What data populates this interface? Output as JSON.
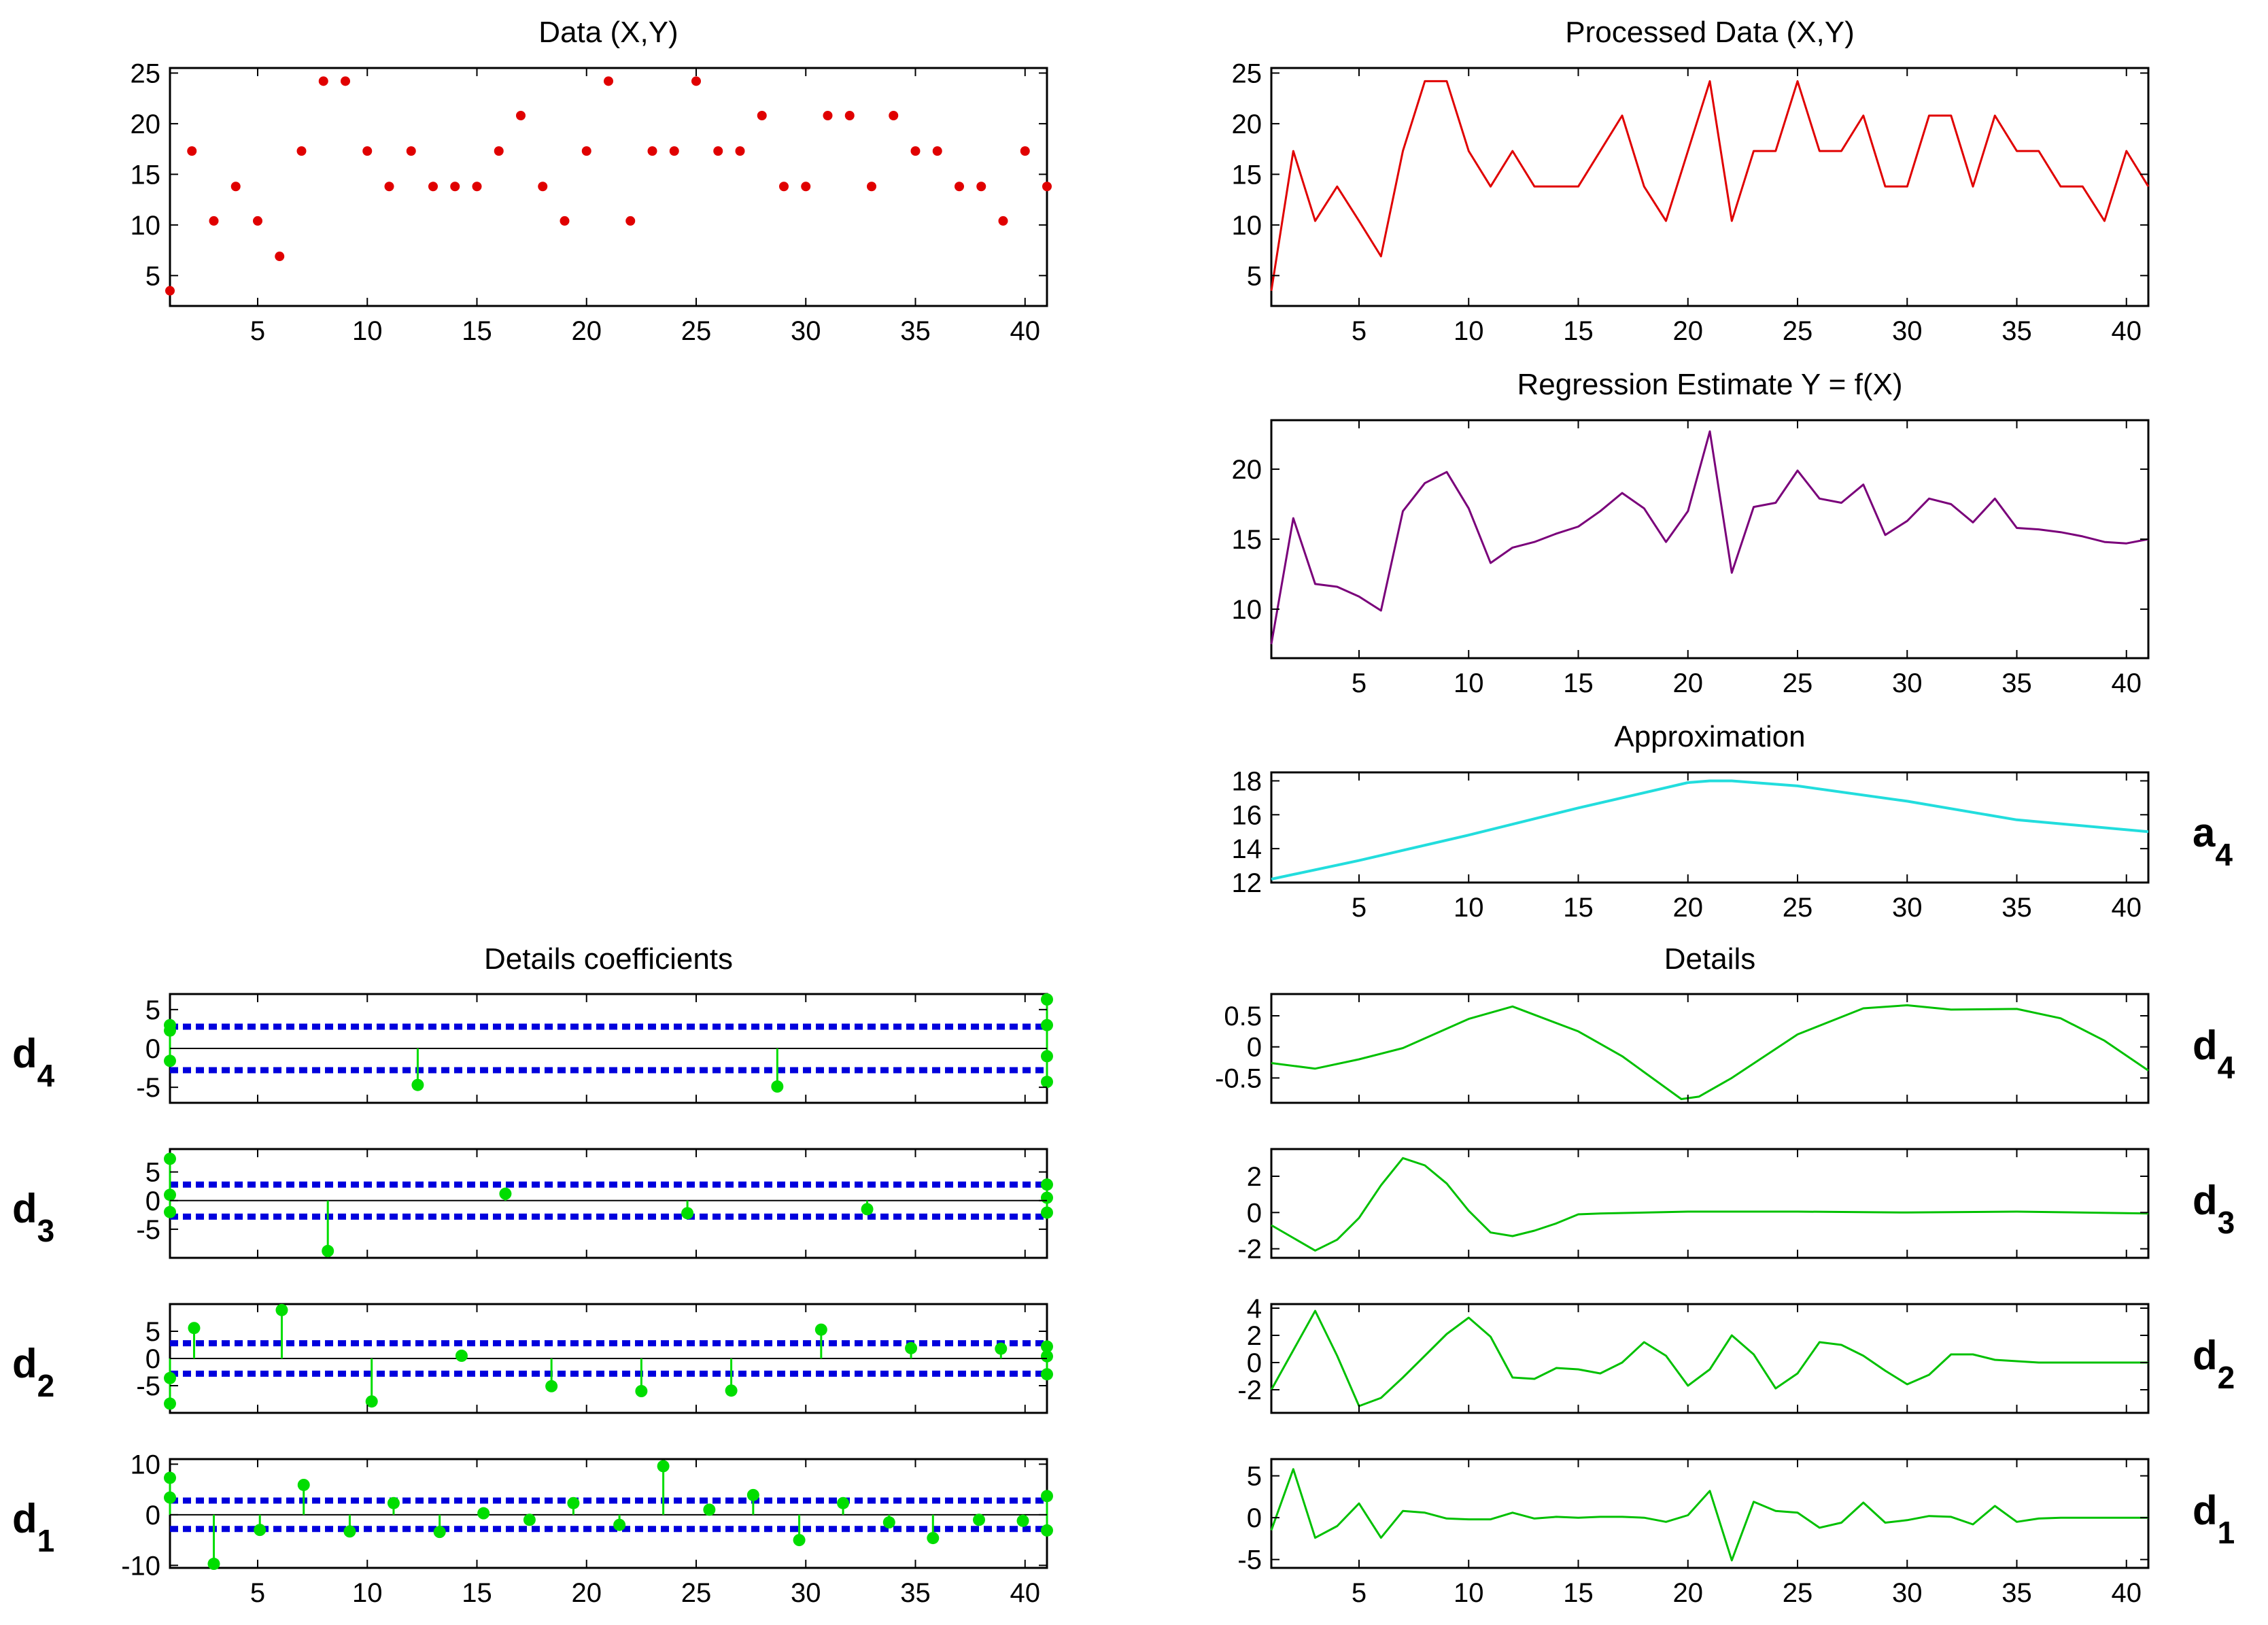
{
  "figure": {
    "colors": {
      "data": "#e00000",
      "processed": "#e00000",
      "regression": "#7a007a",
      "approximation": "#22dddd",
      "details": "#00c000",
      "coef": "#00dd00",
      "threshold": "#0000dd",
      "axis": "#000000"
    }
  },
  "chart_data": [
    {
      "id": "data",
      "type": "scatter",
      "title": "Data (X,Y)",
      "xlim": [
        1,
        41
      ],
      "ylim": [
        2,
        25.5
      ],
      "xticks": [
        5,
        10,
        15,
        20,
        25,
        30,
        35,
        40
      ],
      "yticks": [
        5,
        10,
        15,
        20,
        25
      ],
      "x": [
        1,
        2,
        3,
        4,
        5,
        6,
        7,
        8,
        9,
        10,
        11,
        12,
        13,
        14,
        15,
        16,
        17,
        18,
        19,
        20,
        21,
        22,
        23,
        24,
        25,
        26,
        27,
        28,
        29,
        30,
        31,
        32,
        33,
        34,
        35,
        36,
        37,
        38,
        39,
        40,
        41
      ],
      "y": [
        3.5,
        17.3,
        10.4,
        13.8,
        10.4,
        6.9,
        17.3,
        24.2,
        24.2,
        17.3,
        13.8,
        17.3,
        13.8,
        13.8,
        13.8,
        17.3,
        20.8,
        13.8,
        10.4,
        17.3,
        24.2,
        10.4,
        17.3,
        17.3,
        24.2,
        17.3,
        17.3,
        20.8,
        13.8,
        13.8,
        20.8,
        20.8,
        13.8,
        20.8,
        17.3,
        17.3,
        13.8,
        13.8,
        10.4,
        17.3,
        13.8
      ]
    },
    {
      "id": "processed",
      "type": "line",
      "title": "Processed Data (X,Y)",
      "xlim": [
        1,
        41
      ],
      "ylim": [
        2,
        25.5
      ],
      "xticks": [
        5,
        10,
        15,
        20,
        25,
        30,
        35,
        40
      ],
      "yticks": [
        5,
        10,
        15,
        20,
        25
      ],
      "x": [
        1,
        2,
        3,
        4,
        5,
        6,
        7,
        8,
        9,
        10,
        11,
        12,
        13,
        14,
        15,
        16,
        17,
        18,
        19,
        20,
        21,
        22,
        23,
        24,
        25,
        26,
        27,
        28,
        29,
        30,
        31,
        32,
        33,
        34,
        35,
        36,
        37,
        38,
        39,
        40,
        41
      ],
      "y": [
        3.5,
        17.3,
        10.4,
        13.8,
        10.4,
        6.9,
        17.3,
        24.2,
        24.2,
        17.3,
        13.8,
        17.3,
        13.8,
        13.8,
        13.8,
        17.3,
        20.8,
        13.8,
        10.4,
        17.3,
        24.2,
        10.4,
        17.3,
        17.3,
        24.2,
        17.3,
        17.3,
        20.8,
        13.8,
        13.8,
        20.8,
        20.8,
        13.8,
        20.8,
        17.3,
        17.3,
        13.8,
        13.8,
        10.4,
        17.3,
        13.8
      ]
    },
    {
      "id": "regression",
      "type": "line",
      "title": "Regression Estimate Y = f(X)",
      "xlim": [
        1,
        41
      ],
      "ylim": [
        6.5,
        23.5
      ],
      "xticks": [
        5,
        10,
        15,
        20,
        25,
        30,
        35,
        40
      ],
      "yticks": [
        10,
        15,
        20
      ],
      "x": [
        1,
        2,
        3,
        4,
        5,
        6,
        7,
        8,
        9,
        10,
        11,
        12,
        13,
        14,
        15,
        16,
        17,
        18,
        19,
        20,
        21,
        22,
        23,
        24,
        25,
        26,
        27,
        28,
        29,
        30,
        31,
        32,
        33,
        34,
        35,
        36,
        37,
        38,
        39,
        40,
        41
      ],
      "y": [
        7.5,
        16.5,
        11.8,
        11.6,
        10.9,
        9.9,
        17.0,
        19.0,
        19.8,
        17.2,
        13.3,
        14.4,
        14.8,
        15.4,
        15.9,
        17.0,
        18.3,
        17.2,
        14.8,
        17.0,
        22.7,
        12.6,
        17.3,
        17.6,
        19.9,
        17.9,
        17.6,
        18.9,
        15.3,
        16.3,
        17.9,
        17.5,
        16.2,
        17.9,
        15.8,
        15.7,
        15.5,
        15.2,
        14.8,
        14.7,
        15.0
      ]
    },
    {
      "id": "approximation",
      "type": "line",
      "title": "Approximation",
      "level_label": "a",
      "level_sub": "4",
      "xlim": [
        1,
        41
      ],
      "ylim": [
        12,
        18.5
      ],
      "xticks": [
        5,
        10,
        15,
        20,
        25,
        30,
        35,
        40
      ],
      "yticks": [
        12,
        14,
        16,
        18
      ],
      "x": [
        1,
        5,
        10,
        15,
        20,
        21,
        22,
        25,
        30,
        35,
        41
      ],
      "y": [
        12.2,
        13.3,
        14.8,
        16.4,
        17.9,
        18.0,
        18.0,
        17.7,
        16.8,
        15.7,
        15.0
      ]
    },
    {
      "id": "coefficients",
      "type": "stem",
      "title": "Details coefficients",
      "xlim": [
        1,
        41
      ],
      "xticks": [
        5,
        10,
        15,
        20,
        25,
        30,
        35,
        40
      ],
      "levels": [
        {
          "name": "d4",
          "level_label": "d",
          "level_sub": "4",
          "ylim": [
            -7,
            7
          ],
          "yticks": [
            -5,
            0,
            5
          ],
          "threshold": 2.8,
          "x": [
            1,
            1,
            1,
            12.3,
            28.7,
            41,
            41,
            41,
            41
          ],
          "y": [
            3,
            2.3,
            -1.6,
            -4.7,
            -4.9,
            6.3,
            3,
            -1,
            -4.3
          ]
        },
        {
          "name": "d3",
          "level_label": "d",
          "level_sub": "3",
          "ylim": [
            -10,
            9
          ],
          "yticks": [
            -5,
            0,
            5
          ],
          "threshold": 2.8,
          "x": [
            1,
            1,
            1,
            8.2,
            16.3,
            24.6,
            32.8,
            41,
            41,
            41
          ],
          "y": [
            7.3,
            1,
            -2,
            -8.8,
            1.2,
            -2.2,
            -1.5,
            2.8,
            0.5,
            -2.1
          ]
        },
        {
          "name": "d2",
          "level_label": "d",
          "level_sub": "2",
          "ylim": [
            -10,
            10
          ],
          "yticks": [
            -5,
            0,
            5
          ],
          "threshold": 2.8,
          "x": [
            1,
            1,
            2.1,
            6.1,
            10.2,
            14.3,
            18.4,
            22.5,
            26.6,
            30.7,
            34.8,
            38.9,
            41,
            41,
            41
          ],
          "y": [
            -3.6,
            -8.3,
            5.6,
            8.9,
            -7.9,
            0.5,
            -5.1,
            -6,
            -5.9,
            5.3,
            1.9,
            1.8,
            2.2,
            0.4,
            -2.9
          ]
        },
        {
          "name": "d1",
          "level_label": "d",
          "level_sub": "1",
          "ylim": [
            -10.5,
            11
          ],
          "yticks": [
            -10,
            0,
            10
          ],
          "threshold": 2.8,
          "x": [
            1,
            1,
            3,
            5.1,
            7.1,
            9.2,
            11.2,
            13.3,
            15.3,
            17.4,
            19.4,
            21.5,
            23.5,
            25.6,
            27.6,
            29.7,
            31.7,
            33.8,
            35.8,
            37.9,
            39.9,
            41,
            41
          ],
          "y": [
            7.3,
            3.4,
            -9.7,
            -3,
            5.9,
            -3.3,
            2.3,
            -3.4,
            0.3,
            -1,
            2.3,
            -2,
            9.6,
            1,
            3.9,
            -5,
            2.3,
            -1.5,
            -4.6,
            -1,
            -1.2,
            3.7,
            -3.1
          ]
        }
      ]
    },
    {
      "id": "details",
      "type": "line",
      "title": "Details",
      "xlim": [
        1,
        41
      ],
      "xticks": [
        5,
        10,
        15,
        20,
        25,
        30,
        35,
        40
      ],
      "levels": [
        {
          "name": "d4",
          "level_label": "d",
          "level_sub": "4",
          "ylim": [
            -0.9,
            0.85
          ],
          "yticks": [
            -0.5,
            0,
            0.5
          ],
          "ytick_labels": [
            "-0.5",
            "0",
            "0.5"
          ],
          "x": [
            1,
            3,
            5,
            7,
            10,
            12,
            15,
            17,
            19.7,
            20.5,
            22,
            25,
            28,
            30,
            32,
            35,
            37,
            39,
            41
          ],
          "y": [
            -0.26,
            -0.35,
            -0.2,
            -0.02,
            0.45,
            0.65,
            0.25,
            -0.15,
            -0.84,
            -0.8,
            -0.5,
            0.2,
            0.62,
            0.67,
            0.6,
            0.61,
            0.46,
            0.1,
            -0.38
          ]
        },
        {
          "name": "d3",
          "level_label": "d",
          "level_sub": "3",
          "ylim": [
            -2.5,
            3.5
          ],
          "yticks": [
            -2,
            0,
            2
          ],
          "ytick_labels": [
            "-2",
            "0",
            "2"
          ],
          "x": [
            1,
            3,
            4,
            5,
            6,
            7,
            8,
            9,
            10,
            11,
            12,
            13,
            14,
            15,
            16,
            20,
            25,
            30,
            35,
            41
          ],
          "y": [
            -0.7,
            -2.1,
            -1.5,
            -0.3,
            1.5,
            3.0,
            2.6,
            1.6,
            0.1,
            -1.1,
            -1.3,
            -1.0,
            -0.6,
            -0.1,
            -0.05,
            0.05,
            0.05,
            0,
            0.05,
            -0.05
          ]
        },
        {
          "name": "d2",
          "level_label": "d",
          "level_sub": "2",
          "ylim": [
            -3.7,
            4.3
          ],
          "yticks": [
            -2,
            0,
            2,
            4
          ],
          "ytick_labels": [
            "-2",
            "0",
            "2",
            "4"
          ],
          "x": [
            1,
            3,
            4,
            5,
            6,
            7,
            8,
            9,
            10,
            11,
            12,
            13,
            14,
            15,
            16,
            17,
            18,
            19,
            20,
            21,
            22,
            23,
            24,
            25,
            26,
            27,
            28,
            29,
            30,
            31,
            32,
            33,
            34,
            35,
            36,
            37,
            38,
            39,
            40,
            41
          ],
          "y": [
            -2.0,
            3.8,
            0.5,
            -3.2,
            -2.6,
            -1.1,
            0.5,
            2.1,
            3.3,
            1.9,
            -1.1,
            -1.2,
            -0.4,
            -0.5,
            -0.8,
            0,
            1.5,
            0.5,
            -1.7,
            -0.5,
            2.0,
            0.6,
            -1.9,
            -0.8,
            1.5,
            1.3,
            0.5,
            -0.6,
            -1.6,
            -0.9,
            0.6,
            0.6,
            0.2,
            0.1,
            0.0,
            0.0,
            0.0,
            0.0,
            0.0,
            0.0
          ]
        },
        {
          "name": "d1",
          "level_label": "d",
          "level_sub": "1",
          "ylim": [
            -6,
            7
          ],
          "yticks": [
            -5,
            0,
            5
          ],
          "ytick_labels": [
            "-5",
            "0",
            "5"
          ],
          "x": [
            1,
            2,
            3,
            4,
            5,
            6,
            7,
            8,
            9,
            10,
            11,
            12,
            13,
            14,
            15,
            16,
            17,
            18,
            19,
            20,
            21,
            22,
            23,
            24,
            25,
            26,
            27,
            28,
            29,
            30,
            31,
            32,
            33,
            34,
            35,
            36,
            37,
            38,
            39,
            40,
            41
          ],
          "y": [
            -1.5,
            5.8,
            -2.4,
            -1.0,
            1.7,
            -2.4,
            0.8,
            0.6,
            -0.1,
            -0.2,
            -0.2,
            0.6,
            -0.1,
            0.1,
            0,
            0.1,
            0.1,
            0,
            -0.5,
            0.3,
            3.2,
            -5.1,
            1.9,
            0.8,
            0.6,
            -1.2,
            -0.6,
            1.8,
            -0.6,
            -0.3,
            0.2,
            0.1,
            -0.8,
            1.4,
            -0.5,
            -0.1,
            0,
            0,
            0,
            0,
            0
          ]
        }
      ]
    }
  ]
}
